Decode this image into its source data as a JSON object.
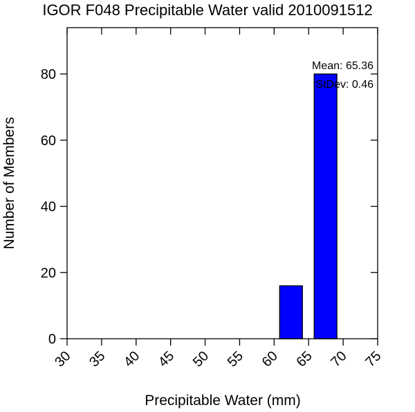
{
  "chart_data": {
    "type": "bar",
    "title": "IGOR F048 Precipitable Water valid 2010091512",
    "xlabel": "Precipitable Water (mm)",
    "ylabel": "Number of Members",
    "xlim": [
      30,
      75
    ],
    "ylim": [
      0,
      94
    ],
    "xticks": [
      "30",
      "35",
      "40",
      "45",
      "50",
      "55",
      "60",
      "65",
      "70",
      "75"
    ],
    "yticks": [
      "0",
      "20",
      "40",
      "60",
      "80"
    ],
    "bars": [
      {
        "x0": 60.8,
        "x1": 64.1,
        "value": 16
      },
      {
        "x0": 65.8,
        "x1": 69.1,
        "value": 80
      }
    ],
    "bar_color": "#0000ff",
    "annotations": {
      "mean": "Mean: 65.36",
      "stdev": "StDev: 0.46"
    },
    "grid": false
  }
}
